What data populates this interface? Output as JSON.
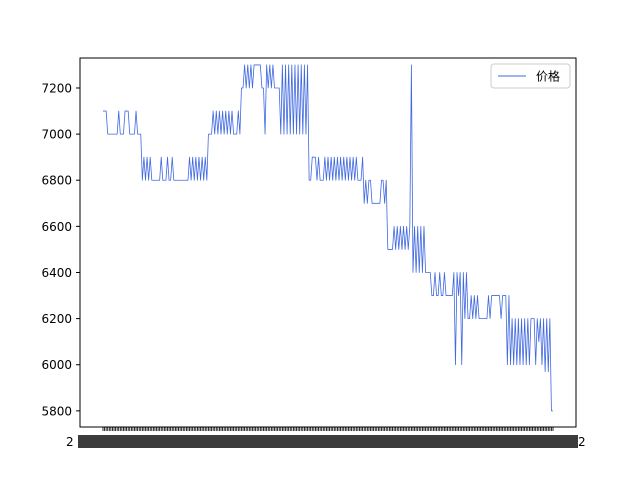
{
  "chart_data": {
    "type": "line",
    "title": "",
    "xlabel": "",
    "ylabel": "",
    "ylim": [
      5730,
      7330
    ],
    "yticks": [
      5800,
      6000,
      6200,
      6400,
      6600,
      6800,
      7000,
      7200
    ],
    "ytick_labels": [
      "5800",
      "6000",
      "6200",
      "6400",
      "6600",
      "6800",
      "7000",
      "7200"
    ],
    "xtick_labels": [
      "2",
      "2"
    ],
    "grid": false,
    "legend_position": "top-right",
    "series": [
      {
        "name": "价格",
        "color": "#4169e1",
        "values": [
          7100,
          7100,
          7100,
          7000,
          7000,
          7000,
          7000,
          7000,
          7000,
          7000,
          7100,
          7000,
          7000,
          7000,
          7100,
          7100,
          7100,
          7000,
          7000,
          7000,
          7000,
          7100,
          7000,
          7000,
          7000,
          6800,
          6900,
          6800,
          6900,
          6800,
          6900,
          6800,
          6800,
          6800,
          6800,
          6800,
          6800,
          6900,
          6800,
          6800,
          6800,
          6900,
          6800,
          6800,
          6900,
          6800,
          6800,
          6800,
          6800,
          6800,
          6800,
          6800,
          6800,
          6800,
          6800,
          6900,
          6800,
          6900,
          6800,
          6900,
          6800,
          6900,
          6800,
          6900,
          6800,
          6900,
          6800,
          7000,
          7000,
          7000,
          7100,
          7000,
          7100,
          7000,
          7100,
          7000,
          7100,
          7000,
          7100,
          7000,
          7100,
          7000,
          7100,
          7000,
          7000,
          7000,
          7100,
          7000,
          7200,
          7200,
          7300,
          7200,
          7300,
          7200,
          7300,
          7200,
          7300,
          7300,
          7300,
          7300,
          7300,
          7200,
          7200,
          7000,
          7300,
          7200,
          7300,
          7200,
          7300,
          7200,
          7200,
          7200,
          7200,
          7000,
          7300,
          7000,
          7300,
          7000,
          7300,
          7000,
          7300,
          7000,
          7300,
          7000,
          7300,
          7000,
          7300,
          7000,
          7300,
          7000,
          7300,
          6800,
          6800,
          6900,
          6900,
          6900,
          6800,
          6900,
          6800,
          6800,
          6800,
          6900,
          6800,
          6900,
          6800,
          6900,
          6800,
          6900,
          6800,
          6900,
          6800,
          6900,
          6800,
          6900,
          6800,
          6900,
          6800,
          6900,
          6800,
          6900,
          6800,
          6900,
          6800,
          6800,
          6800,
          6900,
          6700,
          6800,
          6700,
          6800,
          6800,
          6700,
          6700,
          6700,
          6700,
          6700,
          6700,
          6800,
          6800,
          6700,
          6800,
          6500,
          6500,
          6500,
          6500,
          6600,
          6500,
          6600,
          6500,
          6600,
          6500,
          6600,
          6500,
          6600,
          6500,
          6600,
          7300,
          6400,
          6600,
          6400,
          6600,
          6400,
          6600,
          6400,
          6600,
          6400,
          6400,
          6400,
          6400,
          6300,
          6300,
          6400,
          6300,
          6300,
          6400,
          6300,
          6300,
          6400,
          6300,
          6300,
          6300,
          6300,
          6300,
          6400,
          6000,
          6400,
          6300,
          6400,
          6000,
          6400,
          6200,
          6400,
          6200,
          6200,
          6300,
          6200,
          6300,
          6200,
          6300,
          6200,
          6200,
          6200,
          6200,
          6200,
          6200,
          6300,
          6200,
          6300,
          6300,
          6300,
          6300,
          6300,
          6300,
          6200,
          6300,
          6300,
          6300,
          6000,
          6300,
          6000,
          6200,
          6000,
          6200,
          6000,
          6200,
          6000,
          6200,
          6000,
          6200,
          6000,
          6200,
          6000,
          6200,
          6200,
          6200,
          6000,
          6200,
          6100,
          6200,
          6000,
          6200,
          5970,
          6200,
          5970,
          6200,
          5800,
          5800
        ]
      }
    ]
  }
}
